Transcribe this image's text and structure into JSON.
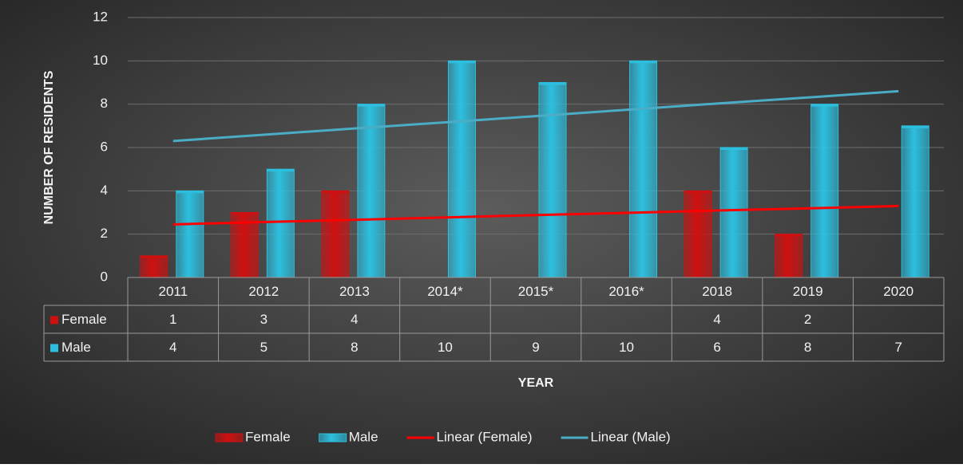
{
  "chart_data": {
    "type": "bar",
    "xlabel": "YEAR",
    "ylabel": "NUMBER OF RESIDENTS",
    "categories": [
      "2011",
      "2012",
      "2013",
      "2014*",
      "2015*",
      "2016*",
      "2018",
      "2019",
      "2020"
    ],
    "series": [
      {
        "name": "Female",
        "color": "#d01010",
        "values": [
          1,
          3,
          4,
          null,
          null,
          null,
          4,
          2,
          null
        ]
      },
      {
        "name": "Male",
        "color": "#2cc0e0",
        "values": [
          4,
          5,
          8,
          10,
          9,
          10,
          6,
          8,
          7
        ]
      }
    ],
    "trendlines": [
      {
        "name": "Linear (Female)",
        "color": "#ff0000",
        "values": [
          2.45,
          2.56,
          2.66,
          2.77,
          2.88,
          2.98,
          3.09,
          3.19,
          3.3
        ]
      },
      {
        "name": "Linear (Male)",
        "color": "#4bacc6",
        "values": [
          6.3,
          6.59,
          6.88,
          7.16,
          7.45,
          7.74,
          8.03,
          8.31,
          8.6
        ]
      }
    ],
    "ylim": [
      0,
      12
    ],
    "yticks": [
      0,
      2,
      4,
      6,
      8,
      10,
      12
    ],
    "grid": true,
    "legend": "bottom",
    "data_table": true
  }
}
